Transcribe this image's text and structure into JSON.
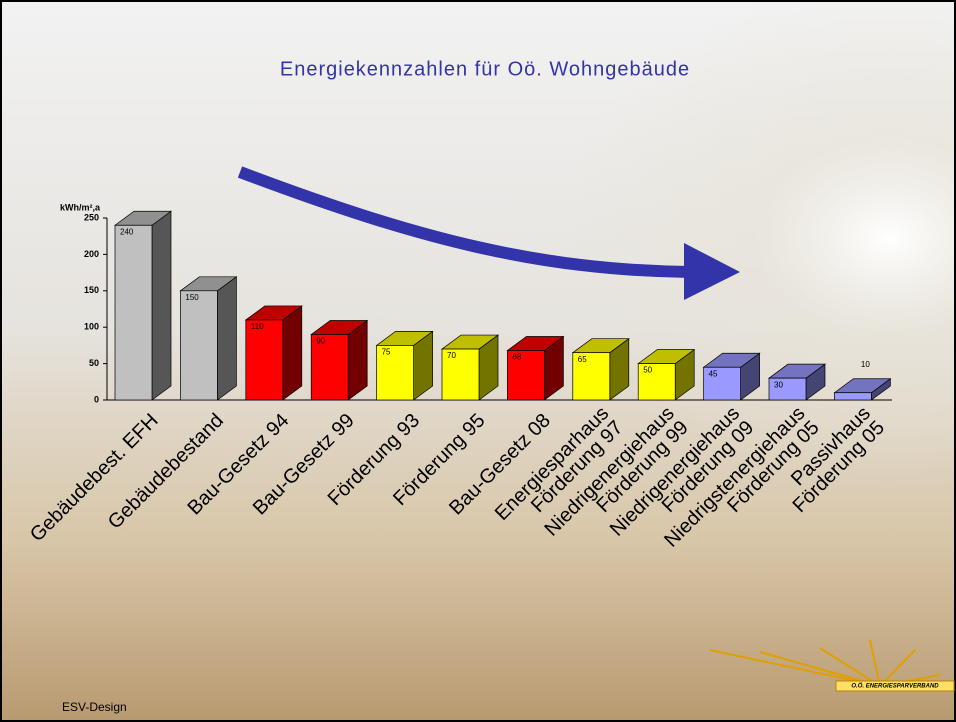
{
  "chart_data": {
    "type": "bar3d",
    "title": "Energiekennzahlen für Oö. Wohngebäude",
    "y_axis_label": "kWh/m²,a",
    "categories": [
      [
        "Gebäudebest. EFH"
      ],
      [
        "Gebäudebestand"
      ],
      [
        "Bau-Gesetz 94"
      ],
      [
        "Bau-Gesetz 99"
      ],
      [
        "Förderung 93"
      ],
      [
        "Förderung 95"
      ],
      [
        "Bau-Gesetz 08"
      ],
      [
        "Energiesparhaus",
        "Förderung 97"
      ],
      [
        "Niedrigenergiehaus",
        "Förderung 99"
      ],
      [
        "Niedrigenergiehaus",
        "Förderung 09"
      ],
      [
        "Niedrigstenergiehaus",
        "Förderung 05"
      ],
      [
        "Passivhaus",
        "Förderung 05"
      ]
    ],
    "values": [
      240,
      150,
      110,
      90,
      75,
      70,
      68,
      65,
      50,
      45,
      30,
      10
    ],
    "colors": [
      "#c0c0c0",
      "#c0c0c0",
      "#ff0000",
      "#ff0000",
      "#ffff00",
      "#ffff00",
      "#ff0000",
      "#ffff00",
      "#ffff00",
      "#9999ff",
      "#9999ff",
      "#9999ff"
    ],
    "ylim": [
      0,
      250
    ],
    "yticks": [
      0,
      50,
      100,
      150,
      200,
      250
    ]
  },
  "footer": "ESV-Design",
  "logo": "O.Ö. ENERGIESPARVERBAND"
}
